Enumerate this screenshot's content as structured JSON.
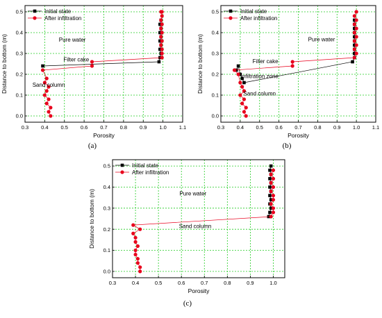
{
  "colors": {
    "initial_series": "#000000",
    "infiltration_series": "#e8001c",
    "grid": "#22cc22",
    "axis": "#000000"
  },
  "chart_data": [
    {
      "panel_label": "(a)",
      "type": "scatter",
      "xlabel": "Porosity",
      "ylabel": "Distance to bottom (m)",
      "xlim": [
        0.3,
        1.1
      ],
      "ylim": [
        -0.03,
        0.53
      ],
      "xticks": [
        "0.3",
        "0.4",
        "0.5",
        "0.6",
        "0.7",
        "0.8",
        "0.9",
        "1.0",
        "1.1"
      ],
      "yticks": [
        "0.0",
        "0.1",
        "0.2",
        "0.3",
        "0.4",
        "0.5"
      ],
      "grid": true,
      "legend_position": "top-left",
      "annotations": [
        {
          "text": "Pure water",
          "x": 0.54,
          "y": 0.356
        },
        {
          "text": "Filter cake",
          "x": 0.56,
          "y": 0.262
        },
        {
          "text": "Sand column",
          "x": 0.42,
          "y": 0.14
        }
      ],
      "series": [
        {
          "name": "Initial state",
          "marker": "square",
          "x": [
            0.39,
            0.98,
            0.985,
            0.99,
            0.985,
            0.99,
            0.985,
            0.99,
            0.985,
            0.99,
            0.985,
            0.99
          ],
          "y": [
            0.24,
            0.26,
            0.28,
            0.3,
            0.32,
            0.34,
            0.36,
            0.38,
            0.4,
            0.42,
            0.44,
            0.46
          ]
        },
        {
          "name": "After infiltration",
          "marker": "circle",
          "x": [
            0.43,
            0.42,
            0.43,
            0.41,
            0.42,
            0.4,
            0.41,
            0.42,
            0.4,
            0.41,
            0.39,
            0.64,
            0.64,
            0.995,
            0.995,
            0.995,
            0.99,
            0.995,
            0.99,
            0.995,
            0.99,
            0.995,
            0.99,
            0.995,
            0.99,
            0.995
          ],
          "y": [
            0.0,
            0.02,
            0.04,
            0.06,
            0.08,
            0.1,
            0.12,
            0.14,
            0.16,
            0.18,
            0.22,
            0.24,
            0.26,
            0.28,
            0.3,
            0.32,
            0.34,
            0.36,
            0.38,
            0.4,
            0.42,
            0.44,
            0.46,
            0.48,
            0.5,
            0.5
          ]
        }
      ]
    },
    {
      "panel_label": "(b)",
      "type": "scatter",
      "xlabel": "Porosity",
      "ylabel": "Distance to bottom (m)",
      "xlim": [
        0.3,
        1.1
      ],
      "ylim": [
        -0.03,
        0.53
      ],
      "xticks": [
        "0.3",
        "0.4",
        "0.5",
        "0.6",
        "0.7",
        "0.8",
        "0.9",
        "1.0",
        "1.1"
      ],
      "yticks": [
        "0.0",
        "0.1",
        "0.2",
        "0.3",
        "0.4",
        "0.5"
      ],
      "grid": true,
      "legend_position": "top-left",
      "annotations": [
        {
          "text": "Pure water",
          "x": 0.82,
          "y": 0.358
        },
        {
          "text": "Filter cake",
          "x": 0.53,
          "y": 0.254
        },
        {
          "text": "Infiltration zone",
          "x": 0.5,
          "y": 0.182
        },
        {
          "text": "Sand column",
          "x": 0.5,
          "y": 0.098
        }
      ],
      "series": [
        {
          "name": "Initial state",
          "marker": "square",
          "x": [
            0.38,
            0.39,
            0.4,
            0.41,
            0.42,
            0.98,
            0.99,
            0.99,
            0.99,
            0.99,
            0.99,
            0.99,
            0.99,
            0.99,
            0.99,
            0.99
          ],
          "y": [
            0.22,
            0.24,
            0.2,
            0.18,
            0.16,
            0.26,
            0.28,
            0.3,
            0.32,
            0.34,
            0.36,
            0.38,
            0.4,
            0.42,
            0.44,
            0.46
          ]
        },
        {
          "name": "After infiltration",
          "marker": "circle",
          "x": [
            0.43,
            0.42,
            0.43,
            0.41,
            0.42,
            0.4,
            0.42,
            0.41,
            0.4,
            0.39,
            0.37,
            0.67,
            0.67,
            0.99,
            1.0,
            0.99,
            1.0,
            0.99,
            1.0,
            0.99,
            1.0,
            0.99,
            1.0,
            0.99,
            1.0
          ],
          "y": [
            0.0,
            0.02,
            0.04,
            0.06,
            0.08,
            0.1,
            0.12,
            0.14,
            0.16,
            0.2,
            0.22,
            0.24,
            0.26,
            0.28,
            0.3,
            0.32,
            0.34,
            0.36,
            0.38,
            0.4,
            0.42,
            0.44,
            0.46,
            0.48,
            0.5
          ]
        }
      ]
    },
    {
      "panel_label": "(c)",
      "type": "scatter",
      "xlabel": "Porosity",
      "ylabel": "Distance to bottom (m)",
      "xlim": [
        0.3,
        1.05
      ],
      "ylim": [
        -0.03,
        0.53
      ],
      "xticks": [
        "0.3",
        "0.4",
        "0.5",
        "0.6",
        "0.7",
        "0.8",
        "0.9",
        "1.0"
      ],
      "yticks": [
        "0.0",
        "0.1",
        "0.2",
        "0.3",
        "0.4",
        "0.5"
      ],
      "grid": true,
      "legend_position": "top-left",
      "annotations": [
        {
          "text": "Pure water",
          "x": 0.65,
          "y": 0.36
        },
        {
          "text": "Sand column",
          "x": 0.66,
          "y": 0.205
        }
      ],
      "series": [
        {
          "name": "Initial state",
          "marker": "square",
          "x": [
            0.98,
            0.985,
            0.99,
            0.985,
            0.99,
            0.985,
            0.99,
            0.985,
            0.99,
            0.985,
            0.99,
            0.985,
            0.99
          ],
          "y": [
            0.26,
            0.28,
            0.3,
            0.32,
            0.34,
            0.36,
            0.38,
            0.4,
            0.42,
            0.44,
            0.46,
            0.48,
            0.5
          ]
        },
        {
          "name": "After infiltration",
          "marker": "circle",
          "x": [
            0.42,
            0.42,
            0.41,
            0.41,
            0.4,
            0.4,
            0.41,
            0.4,
            0.4,
            0.39,
            0.42,
            0.39,
            0.99,
            1.0,
            1.0,
            0.99,
            1.0,
            1.0,
            0.99,
            1.0,
            0.99,
            1.0,
            0.99,
            1.0
          ],
          "y": [
            0.0,
            0.02,
            0.04,
            0.06,
            0.08,
            0.1,
            0.12,
            0.14,
            0.16,
            0.18,
            0.2,
            0.22,
            0.26,
            0.28,
            0.3,
            0.32,
            0.34,
            0.36,
            0.38,
            0.4,
            0.42,
            0.44,
            0.46,
            0.48
          ]
        }
      ]
    }
  ]
}
